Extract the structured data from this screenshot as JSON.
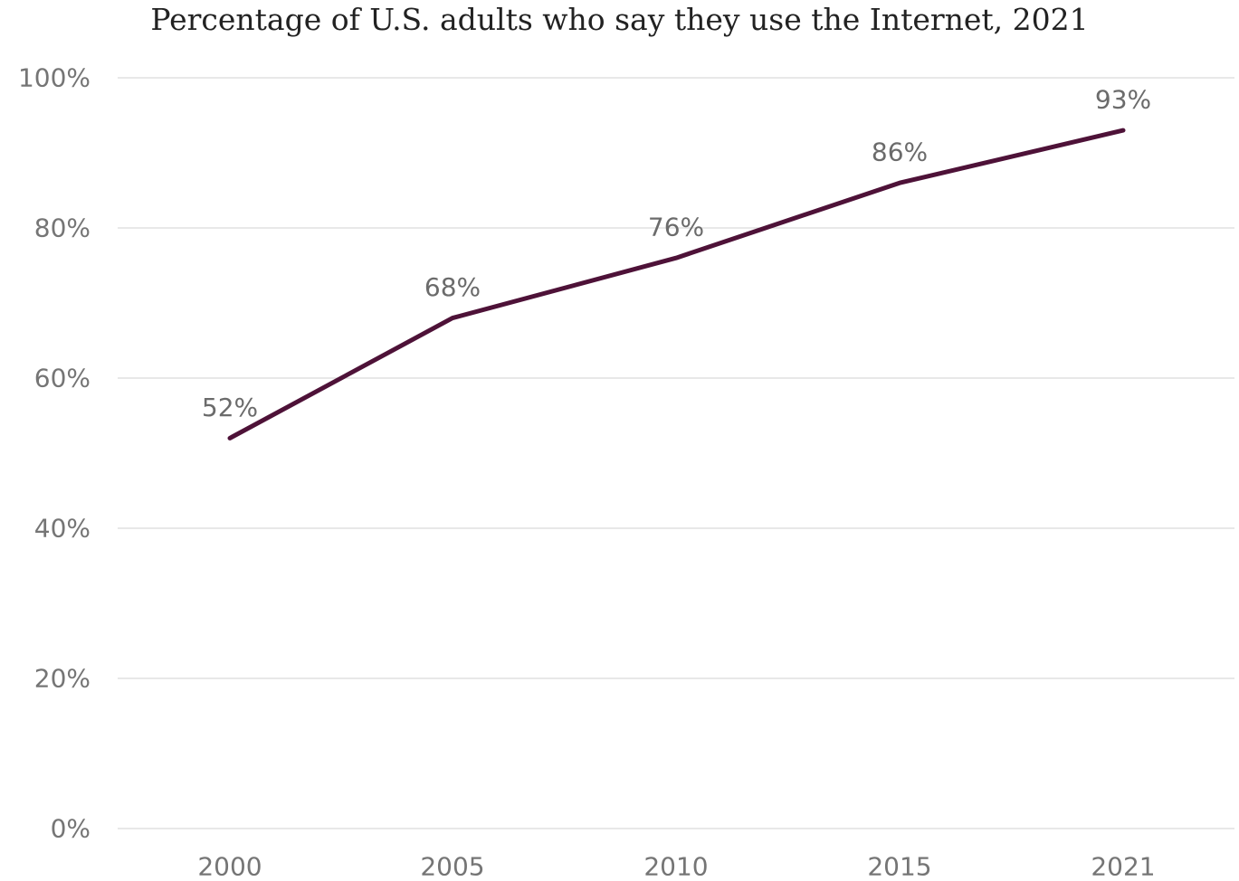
{
  "chart_data": {
    "type": "line",
    "title": "Percentage of U.S. adults who say they use the Internet, 2021",
    "categories": [
      "2000",
      "2005",
      "2010",
      "2015",
      "2021"
    ],
    "series": [
      {
        "values": [
          52,
          68,
          76,
          86,
          93
        ],
        "data_labels": [
          "52%",
          "68%",
          "76%",
          "86%",
          "93%"
        ],
        "color": "#4e1238"
      }
    ],
    "y_ticks": [
      0,
      20,
      40,
      60,
      80,
      100
    ],
    "y_tick_labels": [
      "0%",
      "20%",
      "40%",
      "60%",
      "80%",
      "100%"
    ],
    "ylim": [
      0,
      100
    ],
    "grid": true,
    "legend": "none",
    "colors": {
      "grid": "#d9d9d9",
      "tick_text": "#757575",
      "title_text": "#222222"
    }
  }
}
